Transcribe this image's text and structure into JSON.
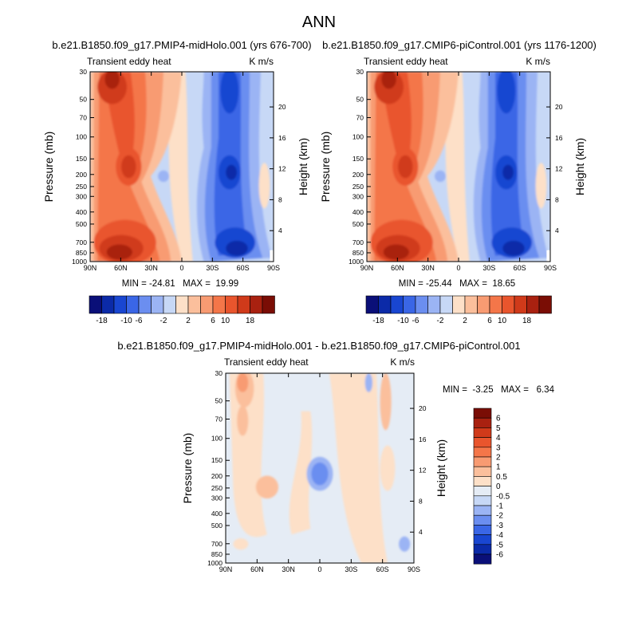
{
  "title": "ANN",
  "colors": {
    "abs_scale": [
      "#0a0f78",
      "#0b2aa8",
      "#1946d1",
      "#3a66e6",
      "#6b8ef0",
      "#9bb4f4",
      "#c7d8f6",
      "#fde0c8",
      "#fbbf9c",
      "#f89b72",
      "#f47649",
      "#e9552d",
      "#d03a1a",
      "#a92110",
      "#7a0d05"
    ],
    "diff_scale": [
      "#0a0f78",
      "#0b2aa8",
      "#1946d1",
      "#3a66e6",
      "#6b8ef0",
      "#9bb4f4",
      "#c7d8f6",
      "#e5ecf5",
      "#fde0c8",
      "#fbbf9c",
      "#f89b72",
      "#f47649",
      "#e9552d",
      "#d03a1a",
      "#a92110",
      "#7a0d05"
    ]
  },
  "chart_data": [
    {
      "type": "heatmap",
      "title": "b.e21.B1850.f09_g17.PMIP4-midHolo.001 (yrs 676-700)",
      "left_label": "Transient eddy heat",
      "right_label": "K m/s",
      "ylabel": "Pressure (mb)",
      "ylabel_right": "Height (km)",
      "x_ticks": [
        "90N",
        "60N",
        "30N",
        "0",
        "30S",
        "60S",
        "90S"
      ],
      "y_ticks": [
        30,
        50,
        70,
        100,
        150,
        200,
        250,
        300,
        400,
        500,
        700,
        850,
        1000
      ],
      "height_ticks": [
        20,
        16,
        12,
        8,
        4
      ],
      "stats": "MIN = -24.81   MAX =  19.99",
      "colorbar_labels": [
        "-18",
        "-10",
        "-6",
        "-2",
        "2",
        "6",
        "10",
        "18"
      ],
      "variant": 0
    },
    {
      "type": "heatmap",
      "title": "b.e21.B1850.f09_g17.CMIP6-piControl.001 (yrs 1176-1200)",
      "left_label": "Transient eddy heat",
      "right_label": "K m/s",
      "ylabel": "Pressure (mb)",
      "ylabel_right": "Height (km)",
      "x_ticks": [
        "90N",
        "60N",
        "30N",
        "0",
        "30S",
        "60S",
        "90S"
      ],
      "y_ticks": [
        30,
        50,
        70,
        100,
        150,
        200,
        250,
        300,
        400,
        500,
        700,
        850,
        1000
      ],
      "height_ticks": [
        20,
        16,
        12,
        8,
        4
      ],
      "stats": "MIN = -25.44   MAX =  18.65",
      "colorbar_labels": [
        "-18",
        "-10",
        "-6",
        "-2",
        "2",
        "6",
        "10",
        "18"
      ],
      "variant": 1
    },
    {
      "type": "heatmap",
      "title": "b.e21.B1850.f09_g17.PMIP4-midHolo.001 - b.e21.B1850.f09_g17.CMIP6-piControl.001",
      "left_label": "Transient eddy heat",
      "right_label": "K m/s",
      "ylabel": "Pressure (mb)",
      "ylabel_right": "Height (km)",
      "x_ticks": [
        "90N",
        "60N",
        "30N",
        "0",
        "30S",
        "60S",
        "90S"
      ],
      "y_ticks": [
        30,
        50,
        70,
        100,
        150,
        200,
        250,
        300,
        400,
        500,
        700,
        850,
        1000
      ],
      "height_ticks": [
        20,
        16,
        12,
        8,
        4
      ],
      "stats": "MIN =  -3.25   MAX =   6.34",
      "colorbar_labels": [
        "6",
        "5",
        "4",
        "3",
        "2",
        "1",
        "0.5",
        "0",
        "-0.5",
        "-1",
        "-2",
        "-3",
        "-4",
        "-5",
        "-6"
      ]
    }
  ]
}
